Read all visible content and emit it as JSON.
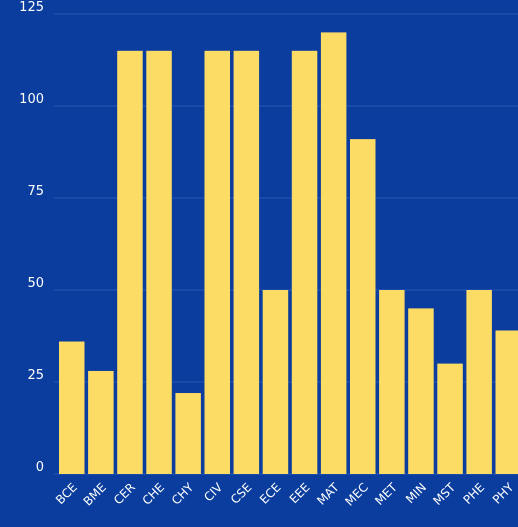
{
  "chart_data": {
    "type": "bar",
    "categories": [
      "BCE",
      "BME",
      "CER",
      "CHE",
      "CHY",
      "CIV",
      "CSE",
      "ECE",
      "EEE",
      "MAT",
      "MEC",
      "MET",
      "MIN",
      "MST",
      "PHE",
      "PHY"
    ],
    "values": [
      36,
      28,
      115,
      115,
      22,
      115,
      115,
      50,
      115,
      120,
      91,
      50,
      45,
      30,
      50,
      39
    ],
    "title": "",
    "xlabel": "",
    "ylabel": "",
    "ylim": [
      0,
      125
    ],
    "yticks": [
      0,
      25,
      50,
      75,
      100,
      125
    ],
    "grid": true,
    "colors": {
      "background": "#0a3d9e",
      "bar": "#fddc66",
      "grid": "#2656b4",
      "text": "#ffffff"
    }
  }
}
